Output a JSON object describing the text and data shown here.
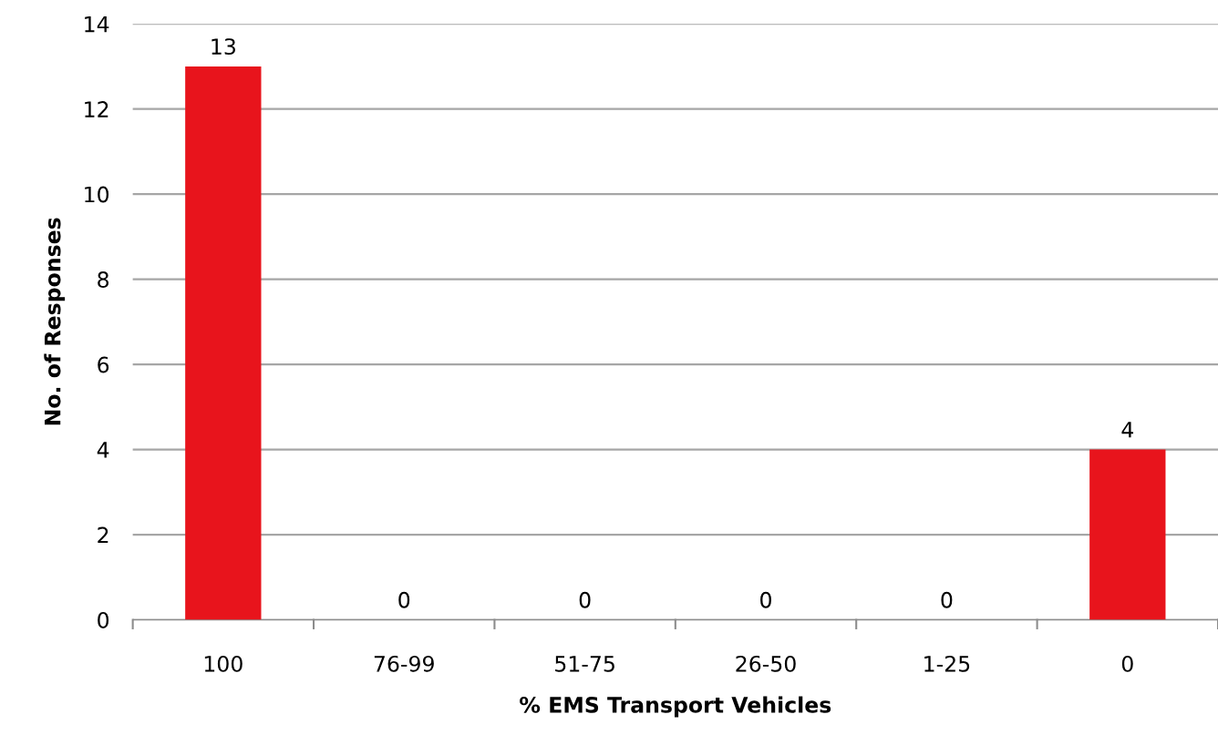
{
  "chart_data": {
    "type": "bar",
    "xlabel": "% EMS Transport Vehicles",
    "ylabel": "No. of Responses",
    "categories": [
      "100",
      "76-99",
      "51-75",
      "26-50",
      "1-25",
      "0"
    ],
    "values": [
      13,
      0,
      0,
      0,
      0,
      4
    ],
    "color": "#e8141c",
    "ylim": [
      0,
      14
    ],
    "yticks": [
      0,
      2,
      4,
      6,
      8,
      10,
      12,
      14
    ],
    "grid": "y",
    "data_labels": true
  }
}
